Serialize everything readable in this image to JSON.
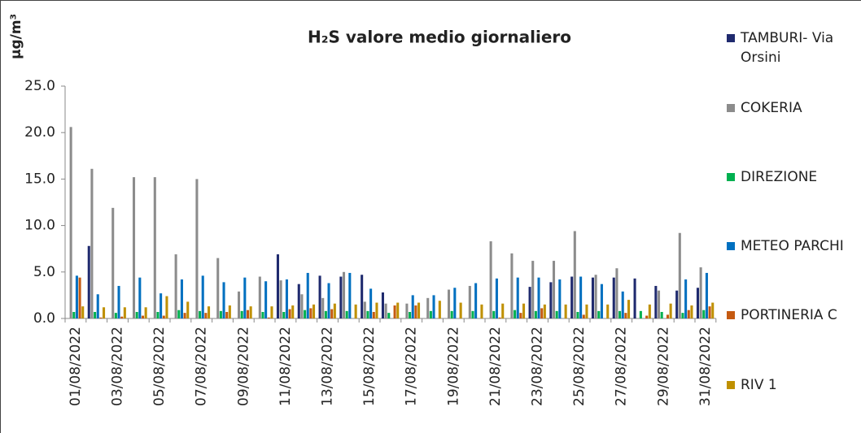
{
  "chart_data": {
    "type": "bar",
    "title": "H₂S valore medio giornaliero",
    "ylabel": "µg/m³",
    "categories": [
      "01/08/2022",
      null,
      "03/08/2022",
      null,
      "05/08/2022",
      null,
      "07/08/2022",
      null,
      "09/08/2022",
      null,
      "11/08/2022",
      null,
      "13/08/2022",
      null,
      "15/08/2022",
      null,
      "17/08/2022",
      null,
      "19/08/2022",
      null,
      "21/08/2022",
      null,
      "23/08/2022",
      null,
      "25/08/2022",
      null,
      "27/08/2022",
      null,
      "29/08/2022",
      null,
      "31/08/2022"
    ],
    "series": [
      {
        "name": "TAMBURI- Via Orsini",
        "color": "#1f2a6e",
        "values": [
          null,
          7.8,
          null,
          null,
          null,
          null,
          null,
          null,
          null,
          null,
          6.9,
          3.7,
          4.6,
          4.5,
          4.7,
          2.8,
          null,
          null,
          null,
          null,
          null,
          null,
          3.4,
          3.9,
          4.5,
          4.4,
          4.4,
          4.3,
          3.5,
          3.0,
          3.3
        ]
      },
      {
        "name": "COKERIA",
        "color": "#8c8c8c",
        "values": [
          20.6,
          16.1,
          11.9,
          15.2,
          15.2,
          6.9,
          15.0,
          6.5,
          2.9,
          4.5,
          4.1,
          2.6,
          2.2,
          5.0,
          1.8,
          1.6,
          1.6,
          2.2,
          3.1,
          3.5,
          8.3,
          7.0,
          6.2,
          6.2,
          9.4,
          4.7,
          5.4,
          null,
          3.0,
          9.2,
          5.5
        ]
      },
      {
        "name": "DIREZIONE",
        "color": "#00b050",
        "values": [
          0.7,
          0.7,
          0.6,
          0.7,
          0.7,
          0.9,
          0.8,
          0.8,
          0.8,
          0.7,
          0.7,
          0.9,
          0.8,
          0.8,
          0.8,
          0.6,
          0.7,
          0.8,
          0.8,
          0.8,
          0.8,
          0.9,
          0.8,
          0.8,
          0.7,
          0.8,
          0.8,
          0.8,
          0.7,
          0.6,
          0.9
        ]
      },
      {
        "name": "METEO PARCHI",
        "color": "#0070c0",
        "values": [
          4.6,
          2.6,
          3.5,
          4.4,
          2.7,
          4.2,
          4.6,
          3.9,
          4.4,
          4.0,
          4.2,
          4.9,
          3.8,
          4.9,
          3.2,
          null,
          2.5,
          2.5,
          3.3,
          3.8,
          4.3,
          4.4,
          4.4,
          4.2,
          4.5,
          3.7,
          2.9,
          null,
          null,
          4.2,
          4.9
        ]
      },
      {
        "name": "PORTINERIA C",
        "color": "#c55a11",
        "values": [
          4.4,
          0.1,
          0.2,
          0.3,
          0.3,
          0.6,
          0.6,
          0.7,
          0.9,
          0.1,
          1.0,
          1.1,
          1.0,
          null,
          0.7,
          1.4,
          1.4,
          null,
          null,
          null,
          0.1,
          0.6,
          1.1,
          null,
          0.4,
          null,
          0.6,
          0.3,
          0.4,
          0.9,
          1.3
        ]
      },
      {
        "name": "RIV 1",
        "color": "#bf9000",
        "values": [
          1.3,
          1.2,
          1.2,
          1.2,
          2.4,
          1.8,
          1.3,
          1.4,
          1.3,
          1.3,
          1.4,
          1.5,
          1.6,
          1.5,
          1.7,
          1.7,
          1.7,
          1.9,
          1.7,
          1.5,
          1.6,
          1.6,
          1.5,
          1.5,
          1.5,
          1.5,
          2.0,
          1.5,
          1.6,
          1.4,
          1.7
        ]
      }
    ],
    "ylim": [
      0,
      25
    ],
    "yticks": [
      {
        "value": 0,
        "label": "0.0"
      },
      {
        "value": 5,
        "label": "5.0"
      },
      {
        "value": 10,
        "label": "10.0"
      },
      {
        "value": 15,
        "label": "15.0"
      },
      {
        "value": 20,
        "label": "20.0"
      },
      {
        "value": 25,
        "label": "25.0"
      }
    ],
    "legend": "right"
  }
}
